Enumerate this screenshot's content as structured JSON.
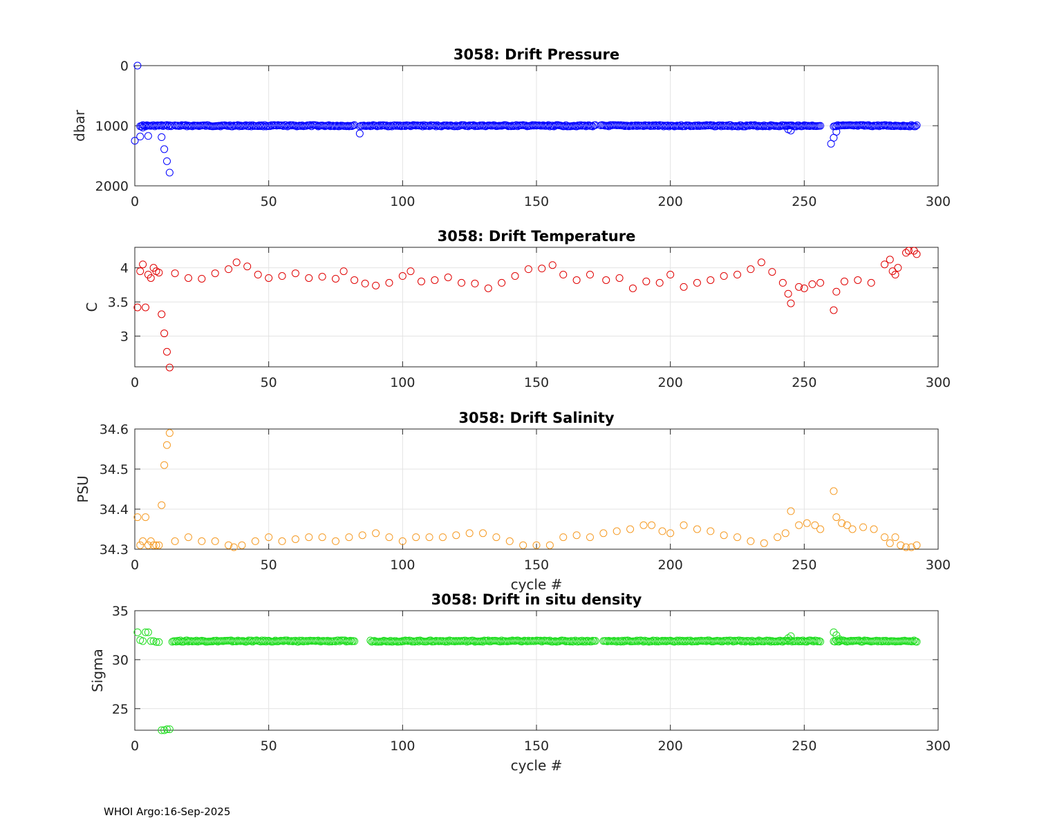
{
  "footer": "WHOI Argo:16-Sep-2025",
  "chart_data": [
    {
      "type": "scatter",
      "title": "3058: Drift Pressure",
      "xlabel": "",
      "ylabel": "dbar",
      "xlim": [
        0,
        300
      ],
      "ylim": [
        0,
        2000
      ],
      "y_reversed": true,
      "xticks": [
        0,
        50,
        100,
        150,
        200,
        250,
        300
      ],
      "yticks": [
        0,
        1000,
        2000
      ],
      "ytick_labels": [
        "0",
        "1000",
        "2000"
      ],
      "grid": true,
      "color": "#0000ff",
      "series": [
        {
          "name": "drift pressure",
          "x": [
            0,
            1,
            2,
            3,
            4,
            5,
            10,
            11,
            12,
            13,
            84,
            244,
            245,
            260,
            261,
            262
          ],
          "y": [
            1250,
            0,
            1180,
            1030,
            1010,
            1170,
            1190,
            1390,
            1590,
            1780,
            1130,
            1060,
            1080,
            1300,
            1200,
            1100
          ],
          "band": {
            "x_from": 2,
            "x_to": 292,
            "y": 1000,
            "gaps": [
              [
                14,
                15
              ],
              [
                82,
                84
              ],
              [
                172,
                174
              ],
              [
                256,
                261
              ]
            ]
          }
        }
      ]
    },
    {
      "type": "scatter",
      "title": "3058: Drift Temperature",
      "xlabel": "",
      "ylabel": "C",
      "xlim": [
        0,
        300
      ],
      "ylim": [
        2.55,
        4.3
      ],
      "xticks": [
        0,
        50,
        100,
        150,
        200,
        250,
        300
      ],
      "yticks": [
        3,
        3.5,
        4
      ],
      "ytick_labels": [
        "3",
        "3.5",
        "4"
      ],
      "grid": true,
      "color": "#e00000",
      "series": [
        {
          "name": "drift temperature",
          "x": [
            1,
            2,
            3,
            4,
            5,
            6,
            7,
            8,
            9,
            10,
            11,
            12,
            13,
            15,
            20,
            25,
            30,
            35,
            38,
            42,
            46,
            50,
            55,
            60,
            65,
            70,
            75,
            78,
            82,
            86,
            90,
            95,
            100,
            103,
            107,
            112,
            117,
            122,
            127,
            132,
            137,
            142,
            147,
            152,
            156,
            160,
            165,
            170,
            176,
            181,
            186,
            191,
            196,
            200,
            205,
            210,
            215,
            220,
            225,
            230,
            234,
            238,
            242,
            244,
            245,
            248,
            250,
            253,
            256,
            261,
            262,
            265,
            270,
            275,
            280,
            282,
            283,
            284,
            285,
            288,
            289,
            291,
            292
          ],
          "y": [
            3.42,
            3.95,
            4.05,
            3.42,
            3.9,
            3.85,
            4.0,
            3.95,
            3.93,
            3.32,
            3.04,
            2.77,
            2.54,
            3.92,
            3.85,
            3.84,
            3.92,
            3.98,
            4.08,
            4.02,
            3.9,
            3.85,
            3.88,
            3.92,
            3.85,
            3.87,
            3.84,
            3.95,
            3.82,
            3.77,
            3.74,
            3.78,
            3.88,
            3.95,
            3.8,
            3.82,
            3.86,
            3.78,
            3.77,
            3.7,
            3.78,
            3.88,
            3.98,
            3.99,
            4.04,
            3.9,
            3.82,
            3.9,
            3.82,
            3.85,
            3.7,
            3.8,
            3.78,
            3.9,
            3.72,
            3.78,
            3.82,
            3.88,
            3.9,
            3.98,
            4.08,
            3.94,
            3.78,
            3.62,
            3.48,
            3.72,
            3.7,
            3.76,
            3.78,
            3.38,
            3.65,
            3.8,
            3.82,
            3.78,
            4.05,
            4.12,
            3.95,
            3.9,
            4.0,
            4.22,
            4.25,
            4.25,
            4.2
          ]
        }
      ]
    },
    {
      "type": "scatter",
      "title": "3058: Drift Salinity",
      "xlabel": "cycle #",
      "ylabel": "PSU",
      "xlim": [
        0,
        300
      ],
      "ylim": [
        34.3,
        34.6
      ],
      "xticks": [
        0,
        50,
        100,
        150,
        200,
        250,
        300
      ],
      "yticks": [
        34.3,
        34.4,
        34.5,
        34.6
      ],
      "ytick_labels": [
        "34.3",
        "34.4",
        "34.5",
        "34.6"
      ],
      "grid": true,
      "color": "#f59a23",
      "series": [
        {
          "name": "drift salinity",
          "x": [
            1,
            2,
            3,
            4,
            5,
            6,
            7,
            8,
            9,
            10,
            11,
            12,
            13,
            15,
            20,
            25,
            30,
            35,
            37,
            40,
            45,
            50,
            55,
            60,
            65,
            70,
            75,
            80,
            85,
            90,
            95,
            100,
            105,
            110,
            115,
            120,
            125,
            130,
            135,
            140,
            145,
            150,
            155,
            160,
            165,
            170,
            175,
            180,
            185,
            190,
            193,
            197,
            200,
            205,
            210,
            215,
            220,
            225,
            230,
            235,
            240,
            243,
            245,
            248,
            251,
            254,
            256,
            261,
            262,
            264,
            266,
            268,
            272,
            276,
            280,
            282,
            284,
            286,
            288,
            290,
            292
          ],
          "y": [
            34.38,
            34.31,
            34.32,
            34.38,
            34.31,
            34.32,
            34.31,
            34.31,
            34.31,
            34.41,
            34.51,
            34.56,
            34.59,
            34.32,
            34.33,
            34.32,
            34.32,
            34.31,
            34.305,
            34.31,
            34.32,
            34.33,
            34.32,
            34.325,
            34.33,
            34.33,
            34.32,
            34.33,
            34.335,
            34.34,
            34.33,
            34.32,
            34.33,
            34.33,
            34.33,
            34.335,
            34.34,
            34.34,
            34.33,
            34.32,
            34.31,
            34.31,
            34.31,
            34.33,
            34.335,
            34.33,
            34.34,
            34.345,
            34.35,
            34.36,
            34.36,
            34.345,
            34.34,
            34.36,
            34.35,
            34.345,
            34.335,
            34.33,
            34.32,
            34.315,
            34.33,
            34.34,
            34.395,
            34.36,
            34.365,
            34.36,
            34.35,
            34.445,
            34.38,
            34.365,
            34.36,
            34.35,
            34.355,
            34.35,
            34.33,
            34.315,
            34.33,
            34.31,
            34.305,
            34.305,
            34.31
          ]
        }
      ]
    },
    {
      "type": "scatter",
      "title": "3058: Drift in situ density",
      "xlabel": "cycle #",
      "ylabel": "Sigma",
      "xlim": [
        0,
        300
      ],
      "ylim": [
        22.8,
        35
      ],
      "xticks": [
        0,
        50,
        100,
        150,
        200,
        250,
        300
      ],
      "yticks": [
        25,
        30,
        35
      ],
      "ytick_labels": [
        "25",
        "30",
        "35"
      ],
      "grid": true,
      "color": "#22dd22",
      "series": [
        {
          "name": "drift in situ density",
          "x": [
            1,
            2,
            3,
            4,
            5,
            6,
            7,
            8,
            9,
            10,
            11,
            12,
            13,
            244,
            245,
            261,
            262,
            263
          ],
          "y": [
            32.8,
            32.0,
            31.9,
            32.8,
            32.8,
            31.9,
            31.9,
            31.8,
            31.8,
            22.8,
            22.8,
            22.9,
            22.9,
            32.2,
            32.4,
            32.8,
            32.5,
            32.1
          ],
          "band": {
            "x_from": 14,
            "x_to": 292,
            "y": 31.9,
            "gaps": [
              [
                82,
                88
              ],
              [
                172,
                175
              ],
              [
                256,
                261
              ]
            ]
          }
        }
      ]
    }
  ]
}
